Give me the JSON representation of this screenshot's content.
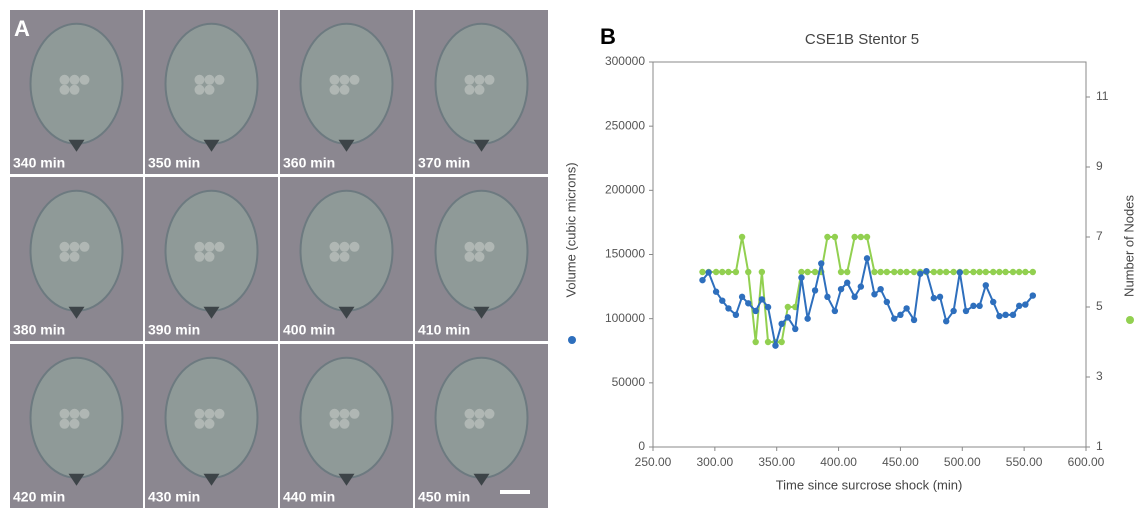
{
  "panel_a": {
    "label": "A",
    "times": [
      "340 min",
      "350 min",
      "360 min",
      "370 min",
      "380 min",
      "390 min",
      "400 min",
      "410 min",
      "420 min",
      "430 min",
      "440 min",
      "450 min"
    ]
  },
  "panel_b_label": "B",
  "chart_data": {
    "type": "line",
    "title": "CSE1B Stentor 5",
    "x_label": "Time since surcrose shock (min)",
    "y_label": "Volume (cubic microns)",
    "y2_label": "Number of Nodes",
    "x": [
      290,
      295,
      301,
      306,
      311,
      317,
      322,
      327,
      333,
      338,
      343,
      349,
      354,
      359,
      365,
      370,
      375,
      381,
      386,
      391,
      397,
      402,
      407,
      413,
      418,
      423,
      429,
      434,
      439,
      445,
      450,
      455,
      461,
      466,
      471,
      477,
      482,
      487,
      493,
      498,
      503,
      509,
      514,
      519,
      525,
      530,
      535,
      541,
      546,
      551,
      557
    ],
    "series": [
      {
        "color": "#2e6fbd",
        "values": [
          130000,
          136000,
          121000,
          114000,
          108000,
          103000,
          117000,
          112000,
          106000,
          115000,
          109000,
          79000,
          96000,
          101000,
          92000,
          132000,
          100000,
          122000,
          143000,
          117000,
          106000,
          123000,
          128000,
          117000,
          125000,
          147000,
          119000,
          123000,
          113000,
          100000,
          103000,
          108000,
          99000,
          135000,
          137000,
          116000,
          117000,
          98000,
          106000,
          136000,
          106000,
          110000,
          110000,
          126000,
          113000,
          102000,
          103000,
          103000,
          110000,
          111000,
          118000
        ]
      },
      {
        "color": "#92d050",
        "axis": "y2",
        "values": [
          6,
          6,
          6,
          6,
          6,
          6,
          7,
          6,
          4,
          6,
          4,
          4,
          4,
          5,
          5,
          6,
          6,
          6,
          6,
          7,
          7,
          6,
          6,
          7,
          7,
          7,
          6,
          6,
          6,
          6,
          6,
          6,
          6,
          6,
          6,
          6,
          6,
          6,
          6,
          6,
          6,
          6,
          6,
          6,
          6,
          6,
          6,
          6,
          6,
          6,
          6
        ]
      }
    ],
    "xlim": [
      250,
      600
    ],
    "xticks": [
      {
        "value": 250,
        "label": "250.00"
      },
      {
        "value": 300,
        "label": "300.00"
      },
      {
        "value": 350,
        "label": "350.00"
      },
      {
        "value": 400,
        "label": "400.00"
      },
      {
        "value": 450,
        "label": "450.00"
      },
      {
        "value": 500,
        "label": "500.00"
      },
      {
        "value": 550,
        "label": "550.00"
      },
      {
        "value": 600,
        "label": "600.00"
      }
    ],
    "ylim": [
      0,
      300000
    ],
    "yticks": [
      0,
      50000,
      100000,
      150000,
      200000,
      250000,
      300000
    ],
    "y2lim": [
      1,
      12
    ],
    "y2ticks": [
      1,
      3,
      5,
      7,
      9,
      11
    ]
  }
}
